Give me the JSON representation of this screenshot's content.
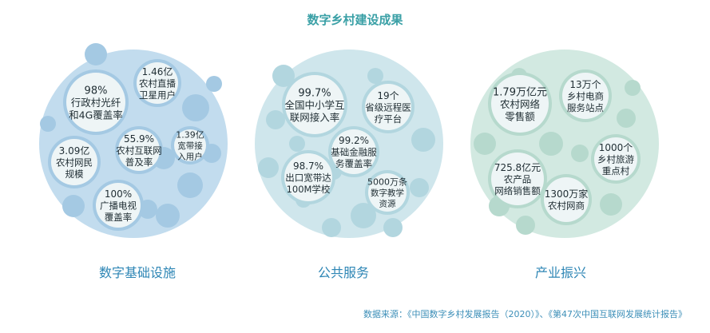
{
  "title": "数字乡村建设成果",
  "clusters": {
    "infra": {
      "label": "数字基础设施",
      "stats": [
        {
          "value": "98%",
          "lines": [
            "行政村光纤",
            "和4G覆盖率"
          ]
        },
        {
          "value": "1.46亿",
          "lines": [
            "农村直播",
            "卫星用户"
          ]
        },
        {
          "value": "3.09亿",
          "lines": [
            "农村网民",
            "规模"
          ]
        },
        {
          "value": "55.9%",
          "lines": [
            "农村互联网",
            "普及率"
          ]
        },
        {
          "value": "1.39亿",
          "lines": [
            "宽带接",
            "入用户"
          ]
        },
        {
          "value": "100%",
          "lines": [
            "广播电视",
            "覆盖率"
          ]
        }
      ]
    },
    "public": {
      "label": "公共服务",
      "stats": [
        {
          "value": "99.7%",
          "lines": [
            "全国中小学互",
            "联网接入率"
          ]
        },
        {
          "value": "19个",
          "lines": [
            "省级远程医",
            "疗平台"
          ]
        },
        {
          "value": "99.2%",
          "lines": [
            "基础金融服",
            "务覆盖率"
          ]
        },
        {
          "value": "98.7%",
          "lines": [
            "出口宽带达",
            "100M学校"
          ]
        },
        {
          "value": "5000万条",
          "lines": [
            "数字教学",
            "资源"
          ]
        }
      ]
    },
    "industry": {
      "label": "产业振兴",
      "stats": [
        {
          "value": "1.79万亿元",
          "lines": [
            "农村网络",
            "零售额"
          ]
        },
        {
          "value": "13万个",
          "lines": [
            "乡村电商",
            "服务站点"
          ]
        },
        {
          "value": "1000个",
          "lines": [
            "乡村旅游",
            "重点村"
          ]
        },
        {
          "value": "725.8亿元",
          "lines": [
            "农产品",
            "网络销售额"
          ]
        },
        {
          "value": "1300万家",
          "lines": [
            "农村网商"
          ]
        }
      ]
    }
  },
  "colors": {
    "infra_bg": "#c2dcee",
    "infra_circle": "#a4c9e3",
    "public_bg": "#cfe6ec",
    "public_circle": "#b2d6df",
    "industry_bg": "#d2e9e1",
    "industry_circle": "#b6d9cd",
    "stat_bg": "#eef5f6"
  },
  "source": "数据来源：《中国数字乡村发展报告（2020）》、《第47次中国互联网发展统计报告》"
}
